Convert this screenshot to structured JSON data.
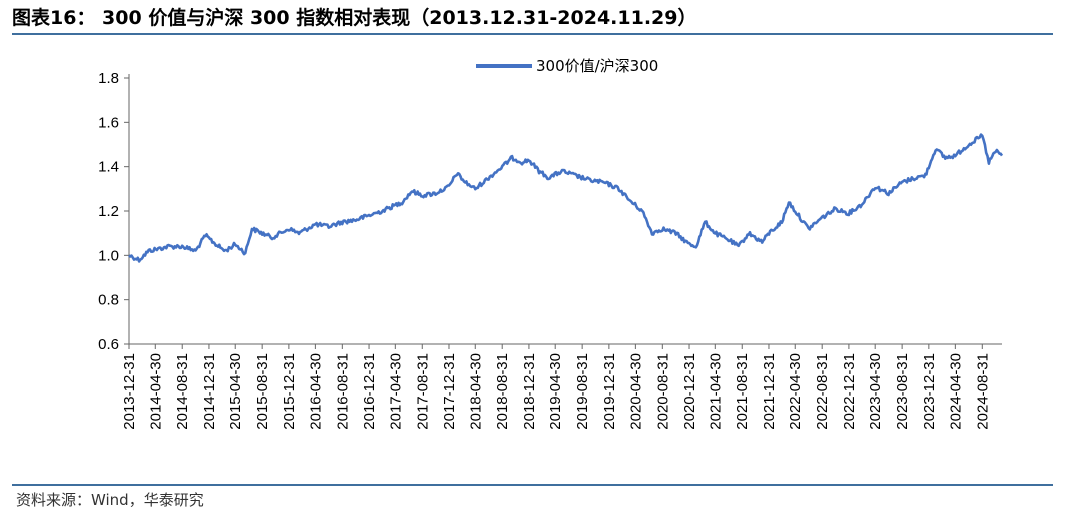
{
  "page": {
    "title": "图表16：  300 价值与沪深 300 指数相对表现（2013.12.31-2024.11.29）",
    "source": "资料来源：Wind，华泰研究"
  },
  "chart_data": {
    "type": "line",
    "legend_position": "top-center",
    "grid": false,
    "line_color": "#4472c4",
    "ylim": [
      0.6,
      1.8
    ],
    "y_ticks": [
      "0.6",
      "0.8",
      "1.0",
      "1.2",
      "1.4",
      "1.6",
      "1.8"
    ],
    "x_range": [
      "2013-12-31",
      "2024-11-29"
    ],
    "x_ticks": [
      "2013-12-31",
      "2014-04-30",
      "2014-08-31",
      "2014-12-31",
      "2015-04-30",
      "2015-08-31",
      "2015-12-31",
      "2016-04-30",
      "2016-08-31",
      "2016-12-31",
      "2017-04-30",
      "2017-08-31",
      "2017-12-31",
      "2018-04-30",
      "2018-08-31",
      "2018-12-31",
      "2019-04-30",
      "2019-08-31",
      "2019-12-31",
      "2020-04-30",
      "2020-08-31",
      "2020-12-31",
      "2021-04-30",
      "2021-08-31",
      "2021-12-31",
      "2022-04-30",
      "2022-08-31",
      "2022-12-31",
      "2023-04-30",
      "2023-08-31",
      "2023-12-31",
      "2024-04-30",
      "2024-08-31"
    ],
    "series": [
      {
        "name": "300价值/沪深300",
        "points": [
          [
            "2013-12-31",
            1.0
          ],
          [
            "2014-02-15",
            0.98
          ],
          [
            "2014-03-31",
            1.02
          ],
          [
            "2014-06-30",
            1.04
          ],
          [
            "2014-08-31",
            1.04
          ],
          [
            "2014-10-31",
            1.02
          ],
          [
            "2014-12-15",
            1.09
          ],
          [
            "2015-01-31",
            1.05
          ],
          [
            "2015-03-15",
            1.02
          ],
          [
            "2015-04-30",
            1.05
          ],
          [
            "2015-06-15",
            1.01
          ],
          [
            "2015-07-15",
            1.12
          ],
          [
            "2015-08-31",
            1.1
          ],
          [
            "2015-10-15",
            1.08
          ],
          [
            "2015-12-31",
            1.12
          ],
          [
            "2016-02-15",
            1.1
          ],
          [
            "2016-04-30",
            1.14
          ],
          [
            "2016-06-30",
            1.13
          ],
          [
            "2016-08-31",
            1.15
          ],
          [
            "2016-10-31",
            1.16
          ],
          [
            "2016-12-31",
            1.18
          ],
          [
            "2017-03-01",
            1.2
          ],
          [
            "2017-05-31",
            1.24
          ],
          [
            "2017-07-15",
            1.29
          ],
          [
            "2017-08-31",
            1.27
          ],
          [
            "2017-10-31",
            1.28
          ],
          [
            "2017-12-31",
            1.31
          ],
          [
            "2018-02-05",
            1.37
          ],
          [
            "2018-03-15",
            1.33
          ],
          [
            "2018-04-30",
            1.3
          ],
          [
            "2018-06-30",
            1.35
          ],
          [
            "2018-09-01",
            1.4
          ],
          [
            "2018-10-15",
            1.44
          ],
          [
            "2018-11-30",
            1.42
          ],
          [
            "2018-12-31",
            1.43
          ],
          [
            "2019-02-15",
            1.38
          ],
          [
            "2019-03-31",
            1.35
          ],
          [
            "2019-05-31",
            1.38
          ],
          [
            "2019-07-31",
            1.36
          ],
          [
            "2019-09-30",
            1.34
          ],
          [
            "2019-11-30",
            1.33
          ],
          [
            "2019-12-31",
            1.32
          ],
          [
            "2020-02-15",
            1.3
          ],
          [
            "2020-04-01",
            1.25
          ],
          [
            "2020-05-31",
            1.2
          ],
          [
            "2020-07-15",
            1.1
          ],
          [
            "2020-08-31",
            1.12
          ],
          [
            "2020-10-31",
            1.1
          ],
          [
            "2020-12-31",
            1.05
          ],
          [
            "2021-01-31",
            1.04
          ],
          [
            "2021-03-15",
            1.15
          ],
          [
            "2021-04-30",
            1.1
          ],
          [
            "2021-06-30",
            1.07
          ],
          [
            "2021-08-15",
            1.04
          ],
          [
            "2021-09-30",
            1.1
          ],
          [
            "2021-11-30",
            1.06
          ],
          [
            "2021-12-31",
            1.1
          ],
          [
            "2022-02-28",
            1.15
          ],
          [
            "2022-04-01",
            1.24
          ],
          [
            "2022-04-30",
            1.2
          ],
          [
            "2022-06-30",
            1.12
          ],
          [
            "2022-08-31",
            1.17
          ],
          [
            "2022-10-31",
            1.21
          ],
          [
            "2022-12-31",
            1.19
          ],
          [
            "2023-02-28",
            1.23
          ],
          [
            "2023-04-30",
            1.31
          ],
          [
            "2023-06-30",
            1.28
          ],
          [
            "2023-08-31",
            1.33
          ],
          [
            "2023-10-31",
            1.35
          ],
          [
            "2023-12-15",
            1.36
          ],
          [
            "2024-01-31",
            1.48
          ],
          [
            "2024-03-15",
            1.44
          ],
          [
            "2024-04-30",
            1.45
          ],
          [
            "2024-06-30",
            1.5
          ],
          [
            "2024-08-01",
            1.52
          ],
          [
            "2024-08-31",
            1.54
          ],
          [
            "2024-09-30",
            1.42
          ],
          [
            "2024-10-31",
            1.47
          ],
          [
            "2024-11-29",
            1.45
          ]
        ]
      }
    ]
  }
}
